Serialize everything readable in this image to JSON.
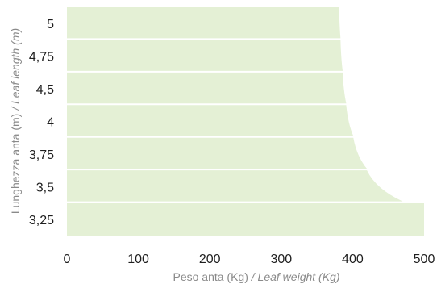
{
  "chart_data": {
    "type": "area",
    "xlabel": "Peso anta (Kg)",
    "xlabel_en": "/ Leaf weight (Kg)",
    "ylabel": "Lunghezza anta (m)",
    "ylabel_en": "/ Leaf length (m)",
    "x_ticks": [
      "0",
      "100",
      "200",
      "300",
      "400",
      "500"
    ],
    "xlim": [
      0,
      500
    ],
    "y_ticks": [
      "5",
      "4,75",
      "4,5",
      "4",
      "3,75",
      "3,5",
      "3,25"
    ],
    "grid": false,
    "area_color": "#e4f0d5",
    "separator_color": "#ffffff",
    "bands": [
      {
        "label": "5",
        "max_weight_start": 381,
        "max_weight_end": 383
      },
      {
        "label": "4,75",
        "max_weight_start": 383,
        "max_weight_end": 386
      },
      {
        "label": "4,5",
        "max_weight_start": 386,
        "max_weight_end": 391
      },
      {
        "label": "4",
        "max_weight_start": 391,
        "max_weight_end": 401
      },
      {
        "label": "3,75",
        "max_weight_start": 401,
        "max_weight_end": 420
      },
      {
        "label": "3,5",
        "max_weight_start": 420,
        "max_weight_end": 470
      },
      {
        "label": "3,25",
        "max_weight_start": 500,
        "max_weight_end": 500
      }
    ]
  }
}
